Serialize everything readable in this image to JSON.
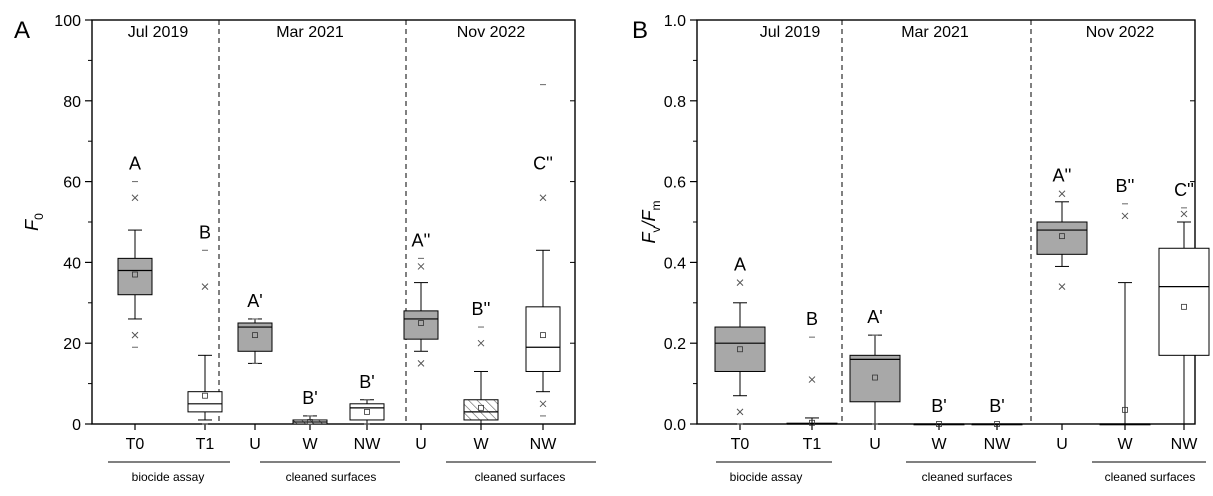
{
  "chart_data": [
    {
      "type": "box",
      "panel_label": "A",
      "ylabel": "F",
      "ylabel_sub": "0",
      "ylim": [
        0,
        100
      ],
      "yticks": [
        0,
        20,
        40,
        60,
        80,
        100
      ],
      "periods": [
        {
          "label": "Jul 2019",
          "group_label": "biocide assay",
          "categories": [
            "T0",
            "T1"
          ]
        },
        {
          "label": "Mar 2021",
          "group_label": "cleaned surfaces",
          "categories": [
            "U",
            "W",
            "NW"
          ]
        },
        {
          "label": "Nov 2022",
          "group_label": "cleaned surfaces",
          "categories": [
            "U",
            "W",
            "NW"
          ]
        }
      ],
      "boxes": [
        {
          "category": "T0",
          "period": "Jul 2019",
          "fill": "gray",
          "q1": 32,
          "median": 38,
          "q3": 41,
          "whisker_low": 26,
          "whisker_high": 48,
          "mean": 37,
          "outliers": [
            22,
            56
          ],
          "extremes": [
            19,
            60
          ],
          "letter": "A"
        },
        {
          "category": "T1",
          "period": "Jul 2019",
          "fill": "white",
          "q1": 3,
          "median": 5,
          "q3": 8,
          "whisker_low": 1,
          "whisker_high": 17,
          "mean": 7,
          "outliers": [
            34
          ],
          "extremes": [
            0,
            43
          ],
          "letter": "B"
        },
        {
          "category": "U",
          "period": "Mar 2021",
          "fill": "gray",
          "q1": 18,
          "median": 24,
          "q3": 25,
          "whisker_low": 15,
          "whisker_high": 26,
          "mean": 22,
          "outliers": [],
          "extremes": [
            15,
            26
          ],
          "letter": "A'"
        },
        {
          "category": "W",
          "period": "Mar 2021",
          "fill": "hatch",
          "q1": 0,
          "median": 0.5,
          "q3": 1,
          "whisker_low": 0,
          "whisker_high": 2,
          "mean": 0.5,
          "outliers": [],
          "extremes": [
            0,
            2
          ],
          "letter": "B'"
        },
        {
          "category": "NW",
          "period": "Mar 2021",
          "fill": "white",
          "q1": 1,
          "median": 4,
          "q3": 5,
          "whisker_low": 0,
          "whisker_high": 6,
          "mean": 3,
          "outliers": [],
          "extremes": [
            0,
            6
          ],
          "letter": "B'"
        },
        {
          "category": "U",
          "period": "Nov 2022",
          "fill": "gray",
          "q1": 21,
          "median": 26,
          "q3": 28,
          "whisker_low": 18,
          "whisker_high": 35,
          "mean": 25,
          "outliers": [
            15,
            39
          ],
          "extremes": [
            41
          ],
          "letter": "A''"
        },
        {
          "category": "W",
          "period": "Nov 2022",
          "fill": "hatch",
          "q1": 1,
          "median": 3,
          "q3": 6,
          "whisker_low": 0,
          "whisker_high": 13,
          "mean": 4,
          "outliers": [
            20
          ],
          "extremes": [
            24
          ],
          "letter": "B''"
        },
        {
          "category": "NW",
          "period": "Nov 2022",
          "fill": "white",
          "q1": 13,
          "median": 19,
          "q3": 29,
          "whisker_low": 8,
          "whisker_high": 43,
          "mean": 22,
          "outliers": [
            5,
            56
          ],
          "extremes": [
            2,
            84
          ],
          "letter": "C''"
        }
      ]
    },
    {
      "type": "box",
      "panel_label": "B",
      "ylabel": "F",
      "ylabel_sub": "v",
      "ylabel_mid": "/F",
      "ylabel_sub2": "m",
      "ylim": [
        0,
        1.0
      ],
      "yticks": [
        0.0,
        0.2,
        0.4,
        0.6,
        0.8,
        1.0
      ],
      "ytick_labels": [
        "0.0",
        "0.2",
        "0.4",
        "0.6",
        "0.8",
        "1.0"
      ],
      "periods": [
        {
          "label": "Jul 2019",
          "group_label": "biocide assay",
          "categories": [
            "T0",
            "T1"
          ]
        },
        {
          "label": "Mar 2021",
          "group_label": "cleaned surfaces",
          "categories": [
            "U",
            "W",
            "NW"
          ]
        },
        {
          "label": "Nov 2022",
          "group_label": "cleaned surfaces",
          "categories": [
            "U",
            "W",
            "NW"
          ]
        }
      ],
      "boxes": [
        {
          "category": "T0",
          "period": "Jul 2019",
          "fill": "gray",
          "q1": 0.13,
          "median": 0.2,
          "q3": 0.24,
          "whisker_low": 0.07,
          "whisker_high": 0.3,
          "mean": 0.185,
          "outliers": [
            0.03,
            0.35
          ],
          "extremes": [
            0.0
          ],
          "letter": "A"
        },
        {
          "category": "T1",
          "period": "Jul 2019",
          "fill": "white",
          "q1": 0.0,
          "median": 0.0,
          "q3": 0.002,
          "whisker_low": 0.0,
          "whisker_high": 0.015,
          "mean": 0.003,
          "outliers": [
            0.11
          ],
          "extremes": [
            0.215
          ],
          "letter": "B"
        },
        {
          "category": "U",
          "period": "Mar 2021",
          "fill": "gray",
          "q1": 0.055,
          "median": 0.16,
          "q3": 0.17,
          "whisker_low": 0.0,
          "whisker_high": 0.22,
          "mean": 0.115,
          "outliers": [],
          "extremes": [
            0.0,
            0.22
          ],
          "letter": "A'"
        },
        {
          "category": "W",
          "period": "Mar 2021",
          "fill": "white",
          "q1": 0.0,
          "median": 0.0,
          "q3": 0.0,
          "whisker_low": 0.0,
          "whisker_high": 0.0,
          "mean": 0.0,
          "outliers": [],
          "extremes": [],
          "letter": "B'"
        },
        {
          "category": "NW",
          "period": "Mar 2021",
          "fill": "white",
          "q1": 0.0,
          "median": 0.0,
          "q3": 0.0,
          "whisker_low": 0.0,
          "whisker_high": 0.0,
          "mean": 0.0,
          "outliers": [],
          "extremes": [],
          "letter": "B'"
        },
        {
          "category": "U",
          "period": "Nov 2022",
          "fill": "gray",
          "q1": 0.42,
          "median": 0.48,
          "q3": 0.5,
          "whisker_low": 0.39,
          "whisker_high": 0.55,
          "mean": 0.465,
          "outliers": [
            0.34,
            0.57
          ],
          "extremes": [],
          "letter": "A''"
        },
        {
          "category": "W",
          "period": "Nov 2022",
          "fill": "white",
          "q1": 0.0,
          "median": 0.0,
          "q3": 0.0,
          "whisker_low": 0.0,
          "whisker_high": 0.35,
          "mean": 0.035,
          "outliers": [
            0.515
          ],
          "extremes": [
            0.545
          ],
          "letter": "B''"
        },
        {
          "category": "NW",
          "period": "Nov 2022",
          "fill": "white",
          "q1": 0.17,
          "median": 0.34,
          "q3": 0.435,
          "whisker_low": 0.0,
          "whisker_high": 0.5,
          "mean": 0.29,
          "outliers": [
            0.52
          ],
          "extremes": [
            0.535
          ],
          "letter": "C''"
        }
      ]
    }
  ]
}
